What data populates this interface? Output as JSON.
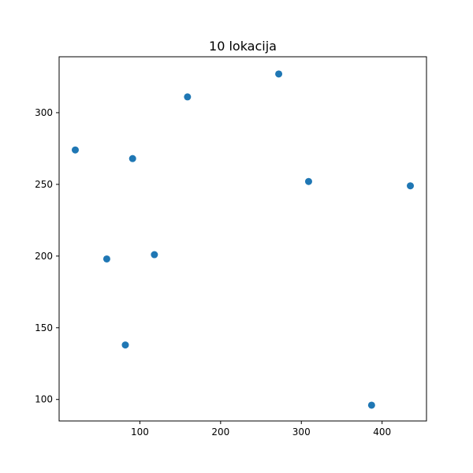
{
  "chart_data": {
    "type": "scatter",
    "title": "10 lokacija",
    "xlabel": "",
    "ylabel": "",
    "xlim": [
      0,
      455
    ],
    "ylim": [
      85,
      339
    ],
    "xticks": [
      100,
      200,
      300,
      400
    ],
    "yticks": [
      100,
      150,
      200,
      250,
      300
    ],
    "grid": false,
    "marker_color": "#1f77b4",
    "points": [
      {
        "x": 20,
        "y": 274
      },
      {
        "x": 91,
        "y": 268
      },
      {
        "x": 159,
        "y": 311
      },
      {
        "x": 272,
        "y": 327
      },
      {
        "x": 309,
        "y": 252
      },
      {
        "x": 435,
        "y": 249
      },
      {
        "x": 59,
        "y": 198
      },
      {
        "x": 118,
        "y": 201
      },
      {
        "x": 82,
        "y": 138
      },
      {
        "x": 387,
        "y": 96
      }
    ]
  }
}
